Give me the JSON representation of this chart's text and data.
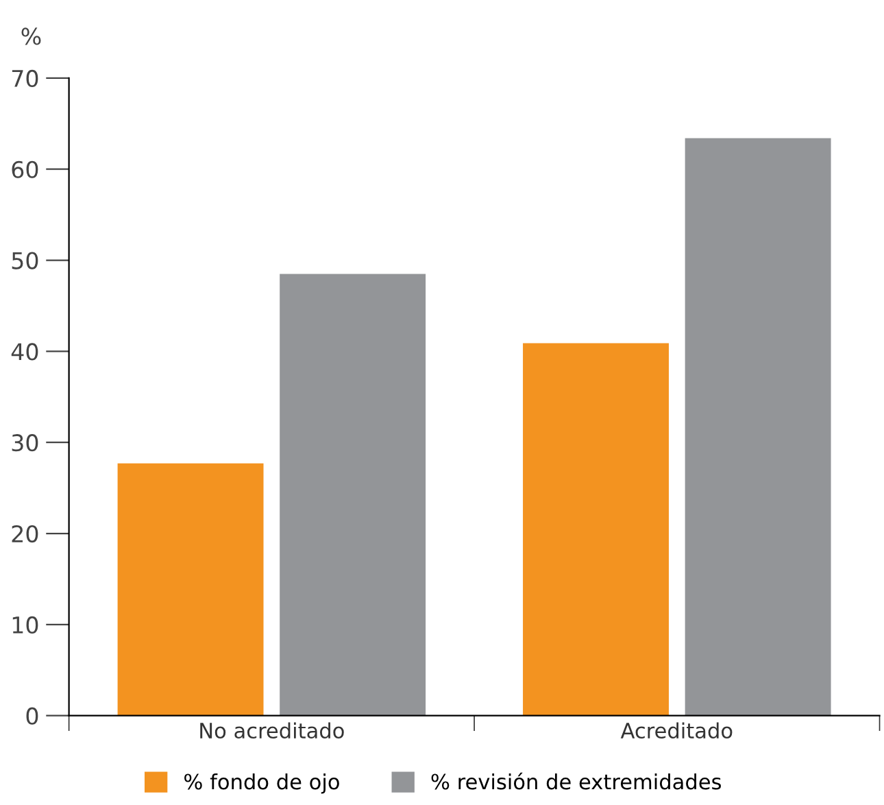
{
  "chart_data": {
    "type": "bar",
    "ylabel": "%",
    "categories": [
      "No acreditado",
      "Acreditado"
    ],
    "series": [
      {
        "name": "% fondo de ojo",
        "color": "#f39320",
        "values": [
          27.7,
          40.9
        ]
      },
      {
        "name": "% revisión de extremidades",
        "color": "#939598",
        "values": [
          48.5,
          63.4
        ]
      }
    ],
    "ylim": [
      0,
      70
    ],
    "yticks": [
      0,
      10,
      20,
      30,
      40,
      50,
      60,
      70
    ],
    "grid": false,
    "legend": "bottom"
  }
}
